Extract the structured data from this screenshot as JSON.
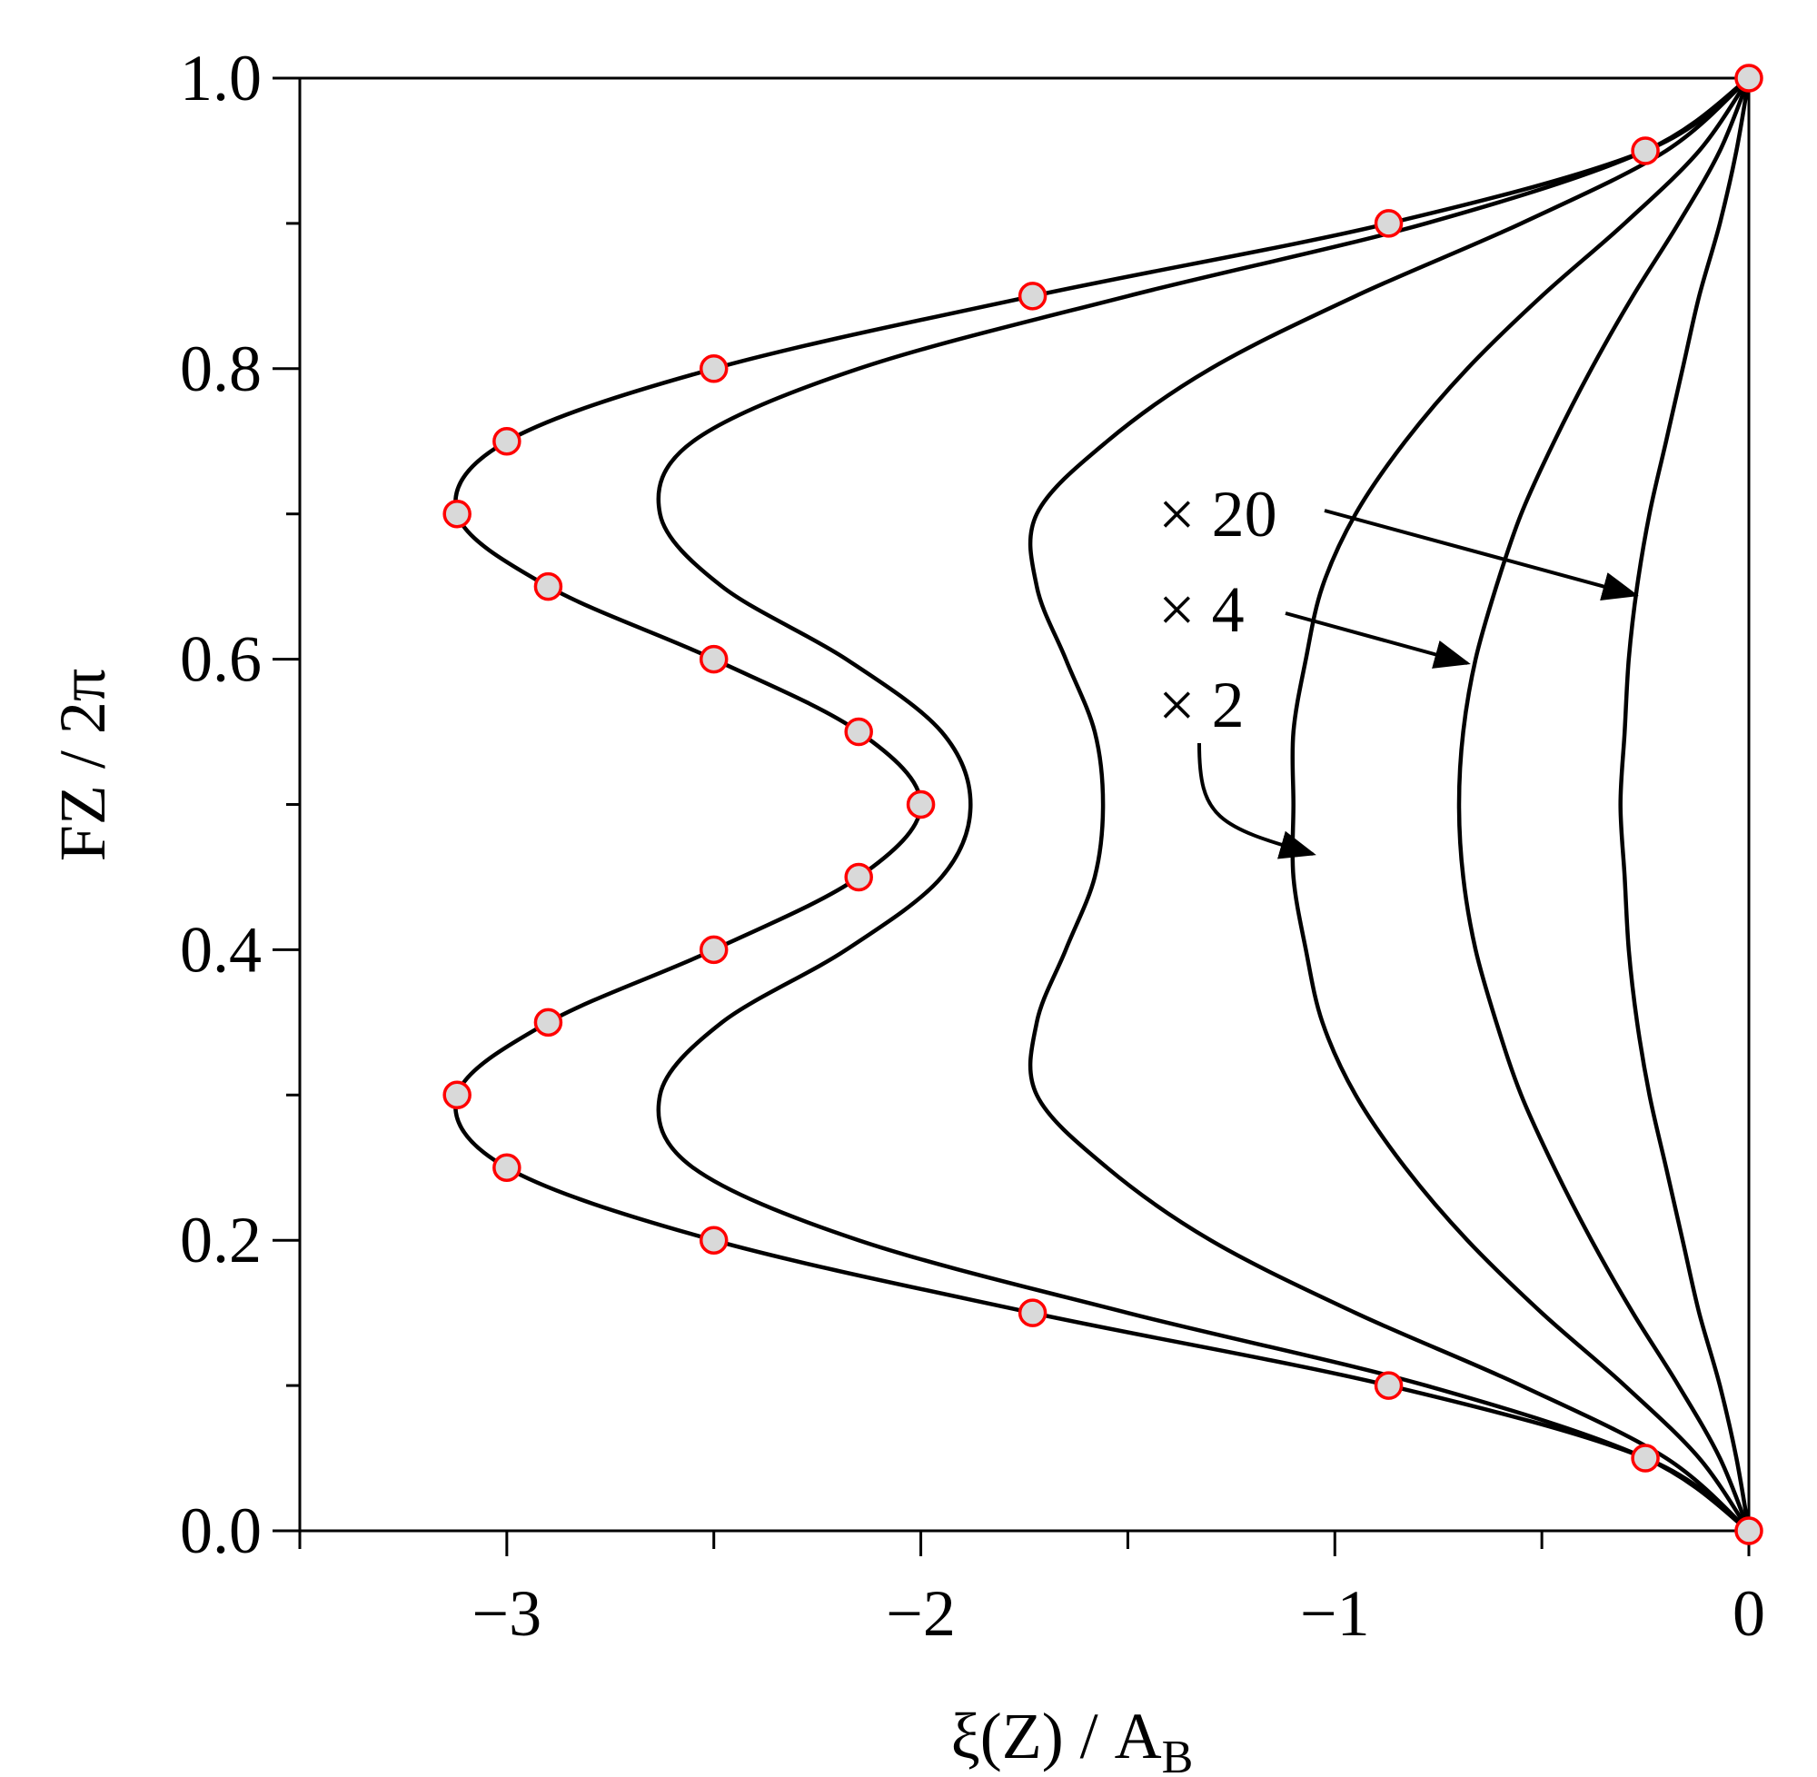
{
  "chart_data": {
    "type": "line",
    "title": "",
    "xlabel": "ξ(Z) / A",
    "xlabel_sub": "B",
    "ylabel": "FZ / 2π",
    "xlim": [
      -3.5,
      0
    ],
    "ylim": [
      0,
      1
    ],
    "x_ticks": [
      -3,
      -2,
      -1,
      0
    ],
    "x_tick_labels": [
      "−3",
      "−2",
      "−1",
      "0"
    ],
    "y_ticks": [
      0,
      0.2,
      0.4,
      0.6,
      0.8,
      1.0
    ],
    "y_tick_labels": [
      "0.0",
      "0.2",
      "0.4",
      "0.6",
      "0.8",
      "1.0"
    ],
    "grid": false,
    "series": [
      {
        "y": [
          0,
          0.05,
          0.1,
          0.15,
          0.2,
          0.25,
          0.3,
          0.35,
          0.4,
          0.45,
          0.5,
          0.55,
          0.6,
          0.65,
          0.7,
          0.75,
          0.8,
          0.85,
          0.9,
          0.95,
          1.0
        ],
        "x": [
          0,
          -0.25,
          -0.87,
          -1.73,
          -2.5,
          -3.0,
          -3.12,
          -2.9,
          -2.5,
          -2.15,
          -2.0,
          -2.15,
          -2.5,
          -2.9,
          -3.12,
          -3.0,
          -2.5,
          -1.73,
          -0.87,
          -0.25,
          0
        ]
      },
      {
        "y": [
          0,
          0.05,
          0.1,
          0.15,
          0.2,
          0.25,
          0.3,
          0.35,
          0.4,
          0.45,
          0.5,
          0.55,
          0.6,
          0.65,
          0.7,
          0.75,
          0.8,
          0.85,
          0.9,
          0.95,
          1.0
        ],
        "x": [
          0,
          -0.25,
          -0.78,
          -1.5,
          -2.15,
          -2.55,
          -2.63,
          -2.48,
          -2.18,
          -1.95,
          -1.88,
          -1.95,
          -2.18,
          -2.48,
          -2.63,
          -2.55,
          -2.15,
          -1.5,
          -0.78,
          -0.25,
          0
        ]
      },
      {
        "y": [
          0,
          0.05,
          0.1,
          0.15,
          0.2,
          0.25,
          0.3,
          0.35,
          0.4,
          0.45,
          0.5,
          0.55,
          0.6,
          0.65,
          0.7,
          0.75,
          0.8,
          0.85,
          0.9,
          0.95,
          1.0
        ],
        "x": [
          0,
          -0.2,
          -0.55,
          -0.95,
          -1.3,
          -1.55,
          -1.72,
          -1.72,
          -1.65,
          -1.58,
          -1.56,
          -1.58,
          -1.65,
          -1.72,
          -1.72,
          -1.55,
          -1.3,
          -0.95,
          -0.55,
          -0.2,
          0
        ]
      },
      {
        "y": [
          0,
          0.05,
          0.1,
          0.15,
          0.2,
          0.25,
          0.3,
          0.35,
          0.4,
          0.45,
          0.5,
          0.55,
          0.6,
          0.65,
          0.7,
          0.75,
          0.8,
          0.85,
          0.9,
          0.95,
          1.0
        ],
        "x": [
          0,
          -0.12,
          -0.3,
          -0.5,
          -0.68,
          -0.83,
          -0.95,
          -1.03,
          -1.07,
          -1.1,
          -1.1,
          -1.1,
          -1.07,
          -1.03,
          -0.95,
          -0.83,
          -0.68,
          -0.5,
          -0.3,
          -0.12,
          0
        ]
      },
      {
        "y": [
          0,
          0.05,
          0.1,
          0.15,
          0.2,
          0.25,
          0.3,
          0.35,
          0.4,
          0.45,
          0.5,
          0.55,
          0.6,
          0.65,
          0.7,
          0.75,
          0.8,
          0.85,
          0.9,
          0.95,
          1.0
        ],
        "x": [
          0,
          -0.07,
          -0.17,
          -0.28,
          -0.38,
          -0.47,
          -0.55,
          -0.61,
          -0.66,
          -0.69,
          -0.7,
          -0.69,
          -0.66,
          -0.61,
          -0.55,
          -0.47,
          -0.38,
          -0.28,
          -0.17,
          -0.07,
          0
        ]
      },
      {
        "y": [
          0,
          0.05,
          0.1,
          0.15,
          0.2,
          0.25,
          0.3,
          0.35,
          0.4,
          0.45,
          0.5,
          0.55,
          0.6,
          0.65,
          0.7,
          0.75,
          0.8,
          0.85,
          0.9,
          0.95,
          1.0
        ],
        "x": [
          0,
          -0.03,
          -0.07,
          -0.12,
          -0.16,
          -0.2,
          -0.24,
          -0.27,
          -0.29,
          -0.3,
          -0.31,
          -0.3,
          -0.29,
          -0.27,
          -0.24,
          -0.2,
          -0.16,
          -0.12,
          -0.07,
          -0.03,
          0
        ]
      }
    ],
    "markers": {
      "y": [
        0,
        0.05,
        0.1,
        0.15,
        0.2,
        0.25,
        0.3,
        0.35,
        0.4,
        0.45,
        0.5,
        0.55,
        0.6,
        0.65,
        0.7,
        0.75,
        0.8,
        0.85,
        0.9,
        0.95,
        1.0
      ],
      "x": [
        0,
        -0.25,
        -0.87,
        -1.73,
        -2.5,
        -3.0,
        -3.12,
        -2.9,
        -2.5,
        -2.15,
        -2.0,
        -2.15,
        -2.5,
        -2.9,
        -3.12,
        -3.0,
        -2.5,
        -1.73,
        -0.87,
        -0.25,
        0
      ],
      "fill": "#d9d9d9",
      "stroke": "#ff0000"
    },
    "annotations": [
      {
        "text": "× 20"
      },
      {
        "text": "× 4"
      },
      {
        "text": "× 2"
      }
    ]
  }
}
